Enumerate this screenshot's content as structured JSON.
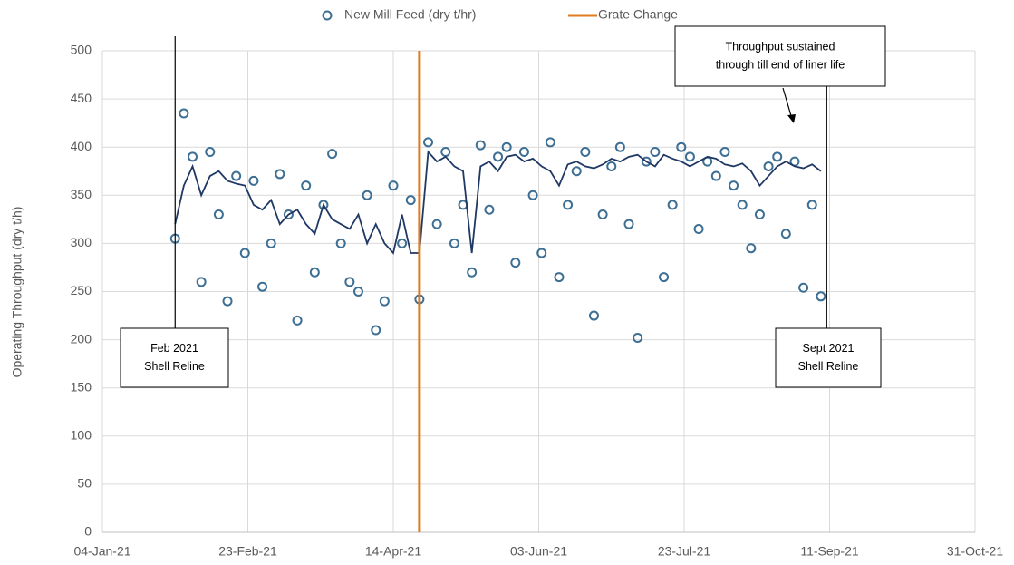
{
  "chart_data": {
    "type": "scatter",
    "y_label": "Operating Throughput (dry t/h)",
    "x": [
      "2021-01-29",
      "2021-02-01",
      "2021-02-04",
      "2021-02-07",
      "2021-02-10",
      "2021-02-13",
      "2021-02-16",
      "2021-02-19",
      "2021-02-22",
      "2021-02-25",
      "2021-02-28",
      "2021-03-03",
      "2021-03-06",
      "2021-03-09",
      "2021-03-12",
      "2021-03-15",
      "2021-03-18",
      "2021-03-21",
      "2021-03-24",
      "2021-03-27",
      "2021-03-30",
      "2021-04-02",
      "2021-04-05",
      "2021-04-08",
      "2021-04-11",
      "2021-04-14",
      "2021-04-17",
      "2021-04-20",
      "2021-04-23",
      "2021-04-26",
      "2021-04-29",
      "2021-05-02",
      "2021-05-05",
      "2021-05-08",
      "2021-05-11",
      "2021-05-14",
      "2021-05-17",
      "2021-05-20",
      "2021-05-23",
      "2021-05-26",
      "2021-05-29",
      "2021-06-01",
      "2021-06-04",
      "2021-06-07",
      "2021-06-10",
      "2021-06-13",
      "2021-06-16",
      "2021-06-19",
      "2021-06-22",
      "2021-06-25",
      "2021-06-28",
      "2021-07-01",
      "2021-07-04",
      "2021-07-07",
      "2021-07-10",
      "2021-07-13",
      "2021-07-16",
      "2021-07-19",
      "2021-07-22",
      "2021-07-25",
      "2021-07-28",
      "2021-07-31",
      "2021-08-03",
      "2021-08-06",
      "2021-08-09",
      "2021-08-12",
      "2021-08-15",
      "2021-08-18",
      "2021-08-21",
      "2021-08-24",
      "2021-08-27",
      "2021-08-30",
      "2021-09-02",
      "2021-09-05",
      "2021-09-08"
    ],
    "series": [
      {
        "name": "New Mill Feed (dry t/hr)",
        "color": "#3d6f94",
        "style": "circle",
        "values": [
          305,
          435,
          390,
          260,
          395,
          330,
          240,
          370,
          290,
          365,
          255,
          300,
          372,
          330,
          220,
          360,
          270,
          340,
          393,
          300,
          260,
          250,
          350,
          210,
          240,
          360,
          300,
          345,
          242,
          405,
          320,
          395,
          300,
          340,
          270,
          402,
          335,
          390,
          400,
          280,
          395,
          350,
          290,
          405,
          265,
          340,
          375,
          395,
          225,
          330,
          380,
          400,
          320,
          202,
          385,
          395,
          265,
          340,
          400,
          390,
          315,
          385,
          370,
          395,
          360,
          340,
          295,
          330,
          380,
          390,
          310,
          385,
          254,
          340,
          245
        ]
      },
      {
        "color": "#1f3864",
        "style": "line",
        "values": [
          320,
          360,
          380,
          350,
          370,
          375,
          365,
          362,
          360,
          340,
          335,
          345,
          320,
          330,
          335,
          320,
          310,
          340,
          325,
          320,
          315,
          330,
          300,
          320,
          300,
          290,
          330,
          290,
          290,
          395,
          385,
          390,
          380,
          375,
          290,
          380,
          385,
          375,
          390,
          392,
          385,
          388,
          380,
          375,
          360,
          382,
          385,
          380,
          378,
          382,
          388,
          385,
          390,
          392,
          385,
          380,
          392,
          388,
          385,
          380,
          385,
          390,
          388,
          382,
          380,
          383,
          375,
          360,
          370,
          380,
          385,
          380,
          378,
          382,
          375
        ]
      }
    ],
    "vlines": [
      {
        "name": "Grate Change",
        "x": "2021-04-23",
        "color": "#e07b22"
      }
    ],
    "annotations": [
      {
        "lines": [
          "Feb 2021",
          "Shell Reline"
        ],
        "x": "2021-01-29"
      },
      {
        "lines": [
          "Sept 2021",
          "Shell Reline"
        ],
        "x": "2021-09-10"
      },
      {
        "lines": [
          "Throughput sustained",
          "through till end of liner life"
        ]
      }
    ],
    "xlim": [
      "2021-01-04",
      "2021-10-31"
    ],
    "xticks": [
      {
        "value": "2021-01-04",
        "label": "04-Jan-21"
      },
      {
        "value": "2021-02-23",
        "label": "23-Feb-21"
      },
      {
        "value": "2021-04-14",
        "label": "14-Apr-21"
      },
      {
        "value": "2021-06-03",
        "label": "03-Jun-21"
      },
      {
        "value": "2021-07-23",
        "label": "23-Jul-21"
      },
      {
        "value": "2021-09-11",
        "label": "11-Sep-21"
      },
      {
        "value": "2021-10-31",
        "label": "31-Oct-21"
      }
    ],
    "ylim": [
      0,
      500
    ],
    "yticks": [
      0,
      50,
      100,
      150,
      200,
      250,
      300,
      350,
      400,
      450,
      500
    ],
    "grid": true
  }
}
